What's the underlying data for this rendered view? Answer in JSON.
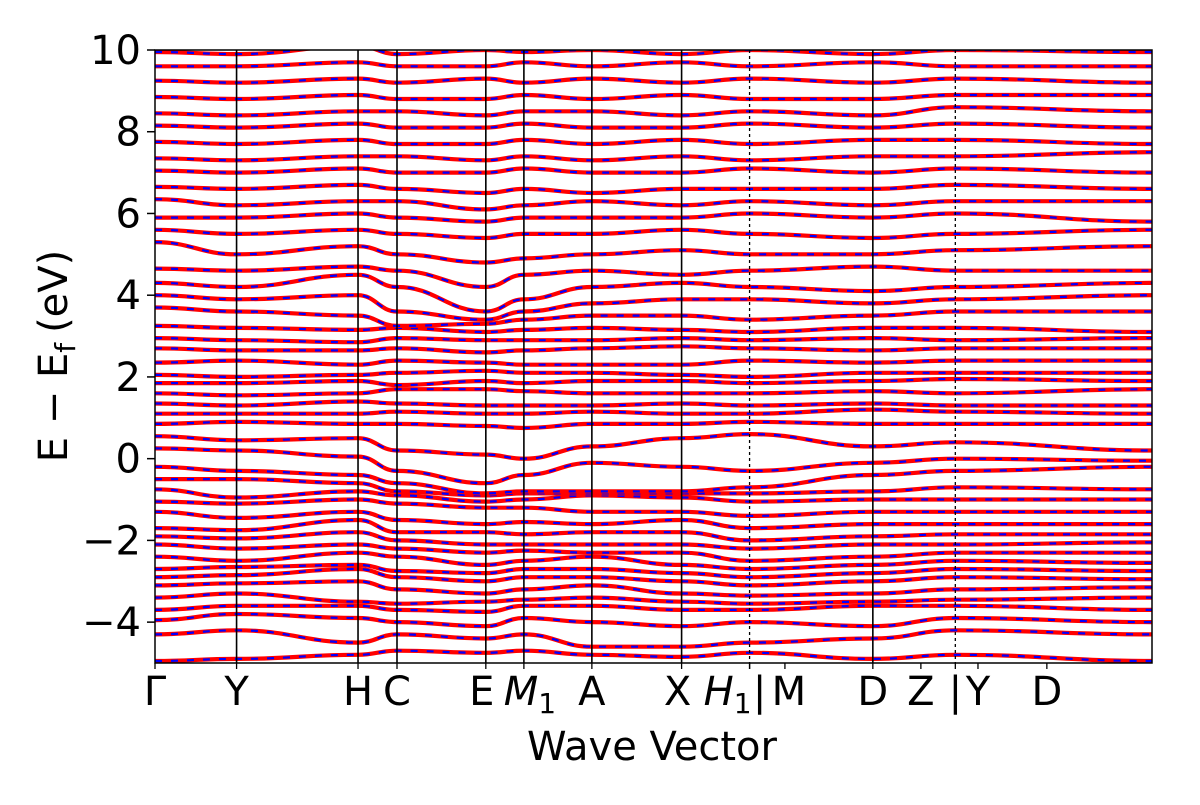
{
  "chart_data": {
    "type": "line",
    "title": "",
    "xlabel": "Wave Vector",
    "ylabel": "E − E",
    "ylabel_subscript": "f",
    "ylabel_unit": "(eV)",
    "ylim": [
      -5,
      10
    ],
    "yticks": [
      -4,
      -2,
      0,
      2,
      4,
      6,
      8,
      10
    ],
    "ytick_labels": [
      "−4",
      "−2",
      "0",
      "2",
      "4",
      "6",
      "8",
      "10"
    ],
    "xlim": [
      0,
      11
    ],
    "kpoints": [
      {
        "label": "Γ",
        "x": 0.0
      },
      {
        "label": "Y",
        "x": 0.9
      },
      {
        "label": "H",
        "x": 2.24
      },
      {
        "label": "C",
        "x": 2.67
      },
      {
        "label": "E",
        "x": 3.65
      },
      {
        "label": "M",
        "sub": "1",
        "x": 4.07
      },
      {
        "label": "A",
        "x": 4.82
      },
      {
        "label": "X",
        "x": 5.81
      },
      {
        "label": "H",
        "sub": "1",
        "x": 6.56
      },
      {
        "label": "|",
        "x": 6.56
      },
      {
        "label": "M",
        "x": 6.95
      },
      {
        "label": "D",
        "x": 7.92
      },
      {
        "label": "Z",
        "x": 8.45
      },
      {
        "label": "|",
        "x": 8.83
      },
      {
        "label": "Y",
        "x": 9.08
      },
      {
        "label": "D",
        "x": 9.84
      }
    ],
    "segment_boundaries": [
      0.9,
      2.24,
      2.67,
      3.65,
      4.07,
      4.82,
      5.81,
      6.56,
      7.92,
      8.83,
      11.0
    ],
    "series": [
      {
        "style": "solid",
        "color": "#ff0000"
      },
      {
        "style": "dashed",
        "color": "#0000ff"
      }
    ],
    "bands": [
      [
        -4.95,
        -4.9,
        -4.8,
        -4.7,
        -4.75,
        -4.7,
        -4.8,
        -4.85,
        -4.75,
        -4.9,
        -4.8,
        -4.95
      ],
      [
        -4.3,
        -4.2,
        -4.5,
        -4.3,
        -4.4,
        -4.3,
        -4.6,
        -4.6,
        -4.5,
        -4.4,
        -4.2,
        -4.3
      ],
      [
        -3.95,
        -3.8,
        -3.9,
        -4.0,
        -4.1,
        -3.9,
        -4.0,
        -4.1,
        -4.0,
        -4.1,
        -3.9,
        -4.0
      ],
      [
        -3.7,
        -3.6,
        -3.6,
        -3.7,
        -3.75,
        -3.6,
        -3.6,
        -3.7,
        -3.7,
        -3.6,
        -3.6,
        -3.7
      ],
      [
        -3.4,
        -3.3,
        -3.5,
        -3.55,
        -3.5,
        -3.45,
        -3.4,
        -3.5,
        -3.55,
        -3.5,
        -3.45,
        -3.4
      ],
      [
        -3.1,
        -3.05,
        -3.0,
        -3.2,
        -3.3,
        -3.2,
        -3.1,
        -3.3,
        -3.35,
        -3.3,
        -3.2,
        -3.15
      ],
      [
        -2.9,
        -2.85,
        -2.7,
        -2.9,
        -3.0,
        -2.9,
        -2.9,
        -3.0,
        -3.1,
        -3.0,
        -2.9,
        -2.95
      ],
      [
        -2.7,
        -2.65,
        -2.6,
        -2.75,
        -2.8,
        -2.7,
        -2.7,
        -2.8,
        -2.9,
        -2.8,
        -2.7,
        -2.75
      ],
      [
        -2.4,
        -2.5,
        -2.3,
        -2.4,
        -2.6,
        -2.5,
        -2.4,
        -2.6,
        -2.7,
        -2.6,
        -2.5,
        -2.55
      ],
      [
        -2.1,
        -2.2,
        -2.1,
        -2.2,
        -2.3,
        -2.25,
        -2.3,
        -2.3,
        -2.5,
        -2.4,
        -2.3,
        -2.3
      ],
      [
        -1.9,
        -1.95,
        -1.8,
        -2.0,
        -2.1,
        -2.1,
        -2.1,
        -2.1,
        -2.2,
        -2.1,
        -2.1,
        -2.05
      ],
      [
        -1.7,
        -1.75,
        -1.5,
        -1.8,
        -1.8,
        -1.85,
        -1.8,
        -1.8,
        -2.0,
        -1.9,
        -1.85,
        -1.85
      ],
      [
        -1.3,
        -1.45,
        -1.3,
        -1.5,
        -1.6,
        -1.55,
        -1.6,
        -1.5,
        -1.7,
        -1.6,
        -1.6,
        -1.6
      ],
      [
        -1.05,
        -1.1,
        -1.0,
        -1.1,
        -1.2,
        -1.2,
        -1.3,
        -1.3,
        -1.4,
        -1.3,
        -1.3,
        -1.3
      ],
      [
        -0.75,
        -0.95,
        -0.8,
        -0.9,
        -1.05,
        -1.0,
        -0.9,
        -0.95,
        -1.05,
        -1.0,
        -1.0,
        -1.0
      ],
      [
        -0.5,
        -0.5,
        -0.6,
        -0.8,
        -0.9,
        -0.85,
        -0.85,
        -0.85,
        -0.85,
        -0.8,
        -0.7,
        -0.75
      ],
      [
        -0.2,
        -0.3,
        -0.4,
        -0.6,
        -0.85,
        -0.8,
        -0.8,
        -0.8,
        -0.7,
        -0.4,
        -0.3,
        -0.2
      ],
      [
        0.25,
        0.2,
        0.05,
        -0.3,
        -0.6,
        -0.4,
        -0.1,
        -0.2,
        -0.3,
        -0.1,
        0.0,
        -0.05
      ],
      [
        0.55,
        0.45,
        0.5,
        0.2,
        0.1,
        0.0,
        0.3,
        0.5,
        0.6,
        0.3,
        0.4,
        0.2
      ],
      [
        0.85,
        0.9,
        0.85,
        0.85,
        0.8,
        0.75,
        0.85,
        0.85,
        0.9,
        0.85,
        0.85,
        0.85
      ],
      [
        1.1,
        1.1,
        1.1,
        1.15,
        1.1,
        1.1,
        1.15,
        1.1,
        1.1,
        1.2,
        1.15,
        1.1
      ],
      [
        1.35,
        1.3,
        1.4,
        1.35,
        1.3,
        1.3,
        1.3,
        1.35,
        1.3,
        1.35,
        1.3,
        1.3
      ],
      [
        1.6,
        1.55,
        1.6,
        1.7,
        1.7,
        1.65,
        1.6,
        1.6,
        1.6,
        1.65,
        1.6,
        1.7
      ],
      [
        1.85,
        1.85,
        1.9,
        1.8,
        1.9,
        1.85,
        1.9,
        1.9,
        1.85,
        1.9,
        1.95,
        1.9
      ],
      [
        2.05,
        2.0,
        2.05,
        2.1,
        2.15,
        2.1,
        2.1,
        2.05,
        2.0,
        2.1,
        2.1,
        2.1
      ],
      [
        2.35,
        2.4,
        2.3,
        2.4,
        2.35,
        2.3,
        2.3,
        2.3,
        2.4,
        2.35,
        2.4,
        2.4
      ],
      [
        2.7,
        2.65,
        2.65,
        2.7,
        2.6,
        2.65,
        2.7,
        2.75,
        2.7,
        2.65,
        2.7,
        2.7
      ],
      [
        2.95,
        2.9,
        2.85,
        2.95,
        2.9,
        2.9,
        2.9,
        2.95,
        2.9,
        2.95,
        2.9,
        2.95
      ],
      [
        3.25,
        3.2,
        3.15,
        3.2,
        3.1,
        3.15,
        3.2,
        3.15,
        3.1,
        3.2,
        3.2,
        3.1
      ],
      [
        3.7,
        3.6,
        3.5,
        3.25,
        3.3,
        3.4,
        3.5,
        3.5,
        3.4,
        3.5,
        3.6,
        3.6
      ],
      [
        4.0,
        3.9,
        4.0,
        3.6,
        3.4,
        3.6,
        3.8,
        3.9,
        3.9,
        3.8,
        3.9,
        4.0
      ],
      [
        4.3,
        4.2,
        4.5,
        4.2,
        3.6,
        3.9,
        4.2,
        4.3,
        4.2,
        4.1,
        4.2,
        4.3
      ],
      [
        4.65,
        4.6,
        4.7,
        4.6,
        4.2,
        4.5,
        4.6,
        4.5,
        4.6,
        4.7,
        4.6,
        4.6
      ],
      [
        5.3,
        5.0,
        5.2,
        5.0,
        4.8,
        4.9,
        5.0,
        5.1,
        5.0,
        5.0,
        5.1,
        5.2
      ],
      [
        5.6,
        5.5,
        5.6,
        5.5,
        5.4,
        5.5,
        5.5,
        5.6,
        5.5,
        5.4,
        5.5,
        5.6
      ],
      [
        5.9,
        5.9,
        6.0,
        5.9,
        5.8,
        5.9,
        5.9,
        5.9,
        6.0,
        5.9,
        6.0,
        5.8
      ],
      [
        6.35,
        6.2,
        6.3,
        6.3,
        6.1,
        6.2,
        6.3,
        6.2,
        6.3,
        6.2,
        6.3,
        6.3
      ],
      [
        6.65,
        6.6,
        6.7,
        6.6,
        6.5,
        6.6,
        6.5,
        6.6,
        6.6,
        6.6,
        6.7,
        6.6
      ],
      [
        7.05,
        7.0,
        7.1,
        7.0,
        7.0,
        7.1,
        7.0,
        7.0,
        7.1,
        7.0,
        7.1,
        7.0
      ],
      [
        7.35,
        7.3,
        7.4,
        7.4,
        7.3,
        7.4,
        7.3,
        7.4,
        7.3,
        7.4,
        7.4,
        7.5
      ],
      [
        7.75,
        7.7,
        7.8,
        7.7,
        7.7,
        7.8,
        7.7,
        7.8,
        7.7,
        7.8,
        7.8,
        7.7
      ],
      [
        8.15,
        8.1,
        8.2,
        8.1,
        8.1,
        8.2,
        8.1,
        8.1,
        8.2,
        8.1,
        8.2,
        8.1
      ],
      [
        8.45,
        8.4,
        8.5,
        8.5,
        8.4,
        8.5,
        8.5,
        8.4,
        8.5,
        8.4,
        8.6,
        8.5
      ],
      [
        8.85,
        8.8,
        8.9,
        8.8,
        8.8,
        8.9,
        8.8,
        8.9,
        8.8,
        8.8,
        8.9,
        8.9
      ],
      [
        9.25,
        9.2,
        9.3,
        9.2,
        9.3,
        9.2,
        9.3,
        9.2,
        9.3,
        9.2,
        9.3,
        9.2
      ],
      [
        9.6,
        9.6,
        9.7,
        9.6,
        9.6,
        9.7,
        9.6,
        9.7,
        9.6,
        9.7,
        9.6,
        9.6
      ],
      [
        9.95,
        9.9,
        10.1,
        9.9,
        10.0,
        9.95,
        10.0,
        9.9,
        10.0,
        9.9,
        10.0,
        9.95
      ]
    ]
  }
}
